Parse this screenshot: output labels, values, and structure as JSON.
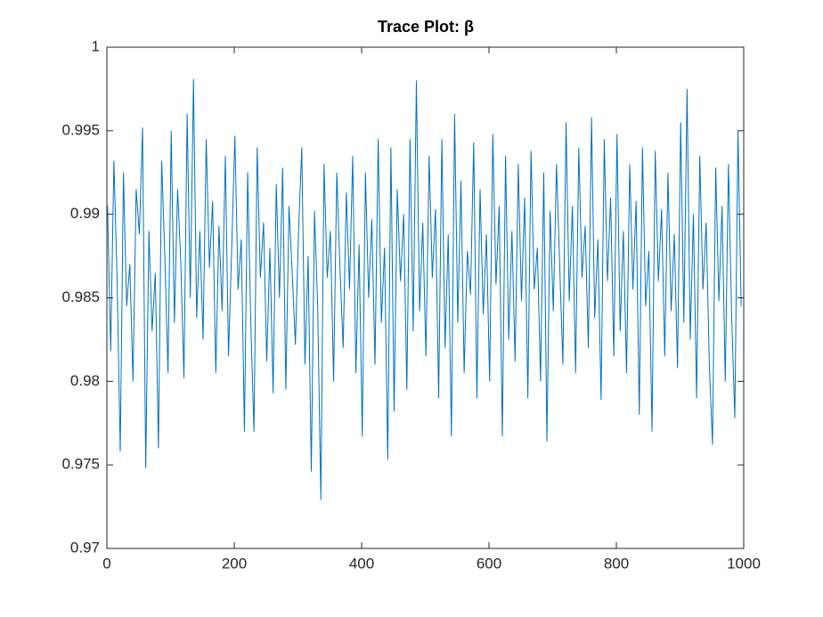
{
  "chart_data": {
    "type": "line",
    "title": "Trace Plot: β",
    "color": "#0072BD",
    "xlim": [
      0,
      1000
    ],
    "xticks": [
      0,
      200,
      400,
      600,
      800,
      1000
    ],
    "ylim": [
      0.97,
      1
    ],
    "yticks": [
      0.97,
      0.975,
      0.98,
      0.985,
      0.99,
      0.995,
      1
    ],
    "x": [
      1,
      6,
      11,
      16,
      21,
      26,
      31,
      36,
      41,
      46,
      51,
      56,
      61,
      66,
      71,
      76,
      81,
      86,
      91,
      96,
      101,
      106,
      111,
      116,
      121,
      126,
      131,
      136,
      141,
      146,
      151,
      156,
      161,
      166,
      171,
      176,
      181,
      186,
      191,
      196,
      201,
      206,
      211,
      216,
      221,
      226,
      231,
      236,
      241,
      246,
      251,
      256,
      261,
      266,
      271,
      276,
      281,
      286,
      291,
      296,
      301,
      306,
      311,
      316,
      321,
      326,
      331,
      336,
      341,
      346,
      351,
      356,
      361,
      366,
      371,
      376,
      381,
      386,
      391,
      396,
      401,
      406,
      411,
      416,
      421,
      426,
      431,
      436,
      441,
      446,
      451,
      456,
      461,
      466,
      471,
      476,
      481,
      486,
      491,
      496,
      501,
      506,
      511,
      516,
      521,
      526,
      531,
      536,
      541,
      546,
      551,
      556,
      561,
      566,
      571,
      576,
      581,
      586,
      591,
      596,
      601,
      606,
      611,
      616,
      621,
      626,
      631,
      636,
      641,
      646,
      651,
      656,
      661,
      666,
      671,
      676,
      681,
      686,
      691,
      696,
      701,
      706,
      711,
      716,
      721,
      726,
      731,
      736,
      741,
      746,
      751,
      756,
      761,
      766,
      771,
      776,
      781,
      786,
      791,
      796,
      801,
      806,
      811,
      816,
      821,
      826,
      831,
      836,
      841,
      846,
      851,
      856,
      861,
      866,
      871,
      876,
      881,
      886,
      891,
      896,
      901,
      906,
      911,
      916,
      921,
      926,
      931,
      936,
      941,
      946,
      951,
      956,
      961,
      966,
      971,
      976,
      981,
      986,
      991,
      996
    ],
    "values": [
      0.9905,
      0.9818,
      0.9932,
      0.9862,
      0.9758,
      0.9925,
      0.9845,
      0.987,
      0.98,
      0.9915,
      0.9888,
      0.9952,
      0.9748,
      0.989,
      0.983,
      0.9865,
      0.976,
      0.9932,
      0.9875,
      0.9805,
      0.995,
      0.9835,
      0.9915,
      0.9872,
      0.9802,
      0.996,
      0.985,
      0.9981,
      0.9838,
      0.989,
      0.9825,
      0.9945,
      0.9868,
      0.9908,
      0.9805,
      0.9893,
      0.9842,
      0.9935,
      0.9815,
      0.988,
      0.9947,
      0.9855,
      0.9885,
      0.977,
      0.9925,
      0.9835,
      0.977,
      0.994,
      0.9862,
      0.9895,
      0.9812,
      0.988,
      0.9793,
      0.9918,
      0.985,
      0.9928,
      0.9795,
      0.9905,
      0.9865,
      0.9822,
      0.989,
      0.994,
      0.981,
      0.9875,
      0.9746,
      0.9902,
      0.9845,
      0.9729,
      0.993,
      0.9862,
      0.989,
      0.98,
      0.9925,
      0.9868,
      0.982,
      0.9913,
      0.9855,
      0.9935,
      0.9805,
      0.9882,
      0.9767,
      0.9925,
      0.985,
      0.9897,
      0.981,
      0.9945,
      0.9835,
      0.988,
      0.9753,
      0.994,
      0.9782,
      0.9915,
      0.986,
      0.99,
      0.9795,
      0.9945,
      0.983,
      0.998,
      0.9842,
      0.9895,
      0.9815,
      0.9935,
      0.9862,
      0.9903,
      0.979,
      0.9945,
      0.982,
      0.9888,
      0.9767,
      0.996,
      0.9835,
      0.992,
      0.9805,
      0.9878,
      0.9852,
      0.9943,
      0.979,
      0.9915,
      0.984,
      0.9888,
      0.98,
      0.9948,
      0.9858,
      0.9905,
      0.9767,
      0.9935,
      0.9825,
      0.989,
      0.9812,
      0.993,
      0.9848,
      0.991,
      0.979,
      0.9938,
      0.9855,
      0.988,
      0.98,
      0.9925,
      0.9764,
      0.9902,
      0.9842,
      0.993,
      0.987,
      0.981,
      0.9955,
      0.9848,
      0.9905,
      0.9805,
      0.994,
      0.9862,
      0.9893,
      0.982,
      0.9958,
      0.9838,
      0.9885,
      0.9789,
      0.9945,
      0.986,
      0.991,
      0.9815,
      0.9948,
      0.983,
      0.989,
      0.9805,
      0.993,
      0.9855,
      0.9908,
      0.978,
      0.994,
      0.9845,
      0.9878,
      0.977,
      0.9938,
      0.986,
      0.9903,
      0.9815,
      0.9925,
      0.9842,
      0.9888,
      0.9808,
      0.9955,
      0.9835,
      0.9975,
      0.9825,
      0.99,
      0.979,
      0.9935,
      0.9855,
      0.9895,
      0.981,
      0.9762,
      0.9928,
      0.9848,
      0.9905,
      0.98,
      0.993,
      0.984,
      0.9778,
      0.995,
      0.9845
    ]
  }
}
